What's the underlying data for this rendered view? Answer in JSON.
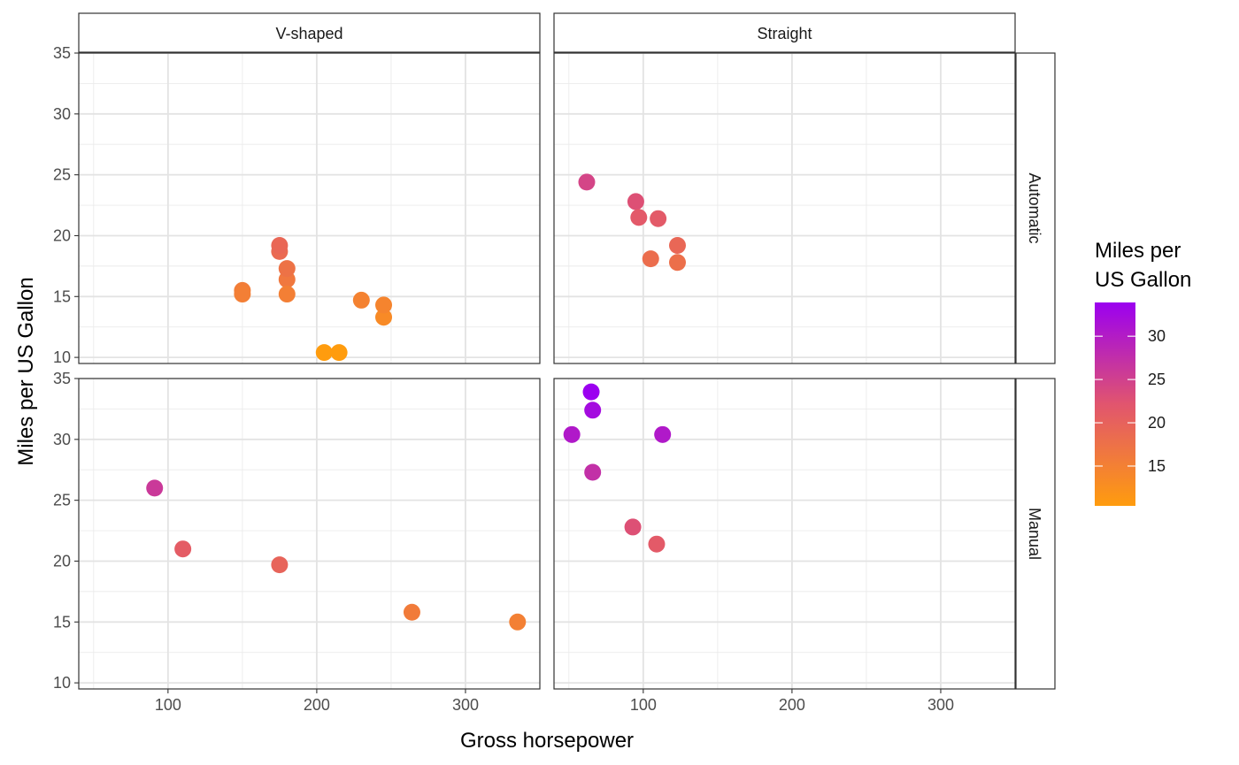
{
  "chart_data": {
    "type": "scatter",
    "facet_cols": [
      "V-shaped",
      "Straight"
    ],
    "facet_rows": [
      "Automatic",
      "Manual"
    ],
    "xlabel": "Gross horsepower",
    "ylabel": "Miles per US Gallon",
    "xlim": [
      40,
      350
    ],
    "ylim": [
      9.5,
      35.0
    ],
    "x_ticks": [
      100,
      200,
      300
    ],
    "y_ticks": [
      10,
      15,
      20,
      25,
      30,
      35
    ],
    "grid": true,
    "legend": {
      "title_lines": [
        "Miles per",
        "US Gallon"
      ],
      "ticks": [
        15,
        20,
        25,
        30
      ],
      "range": [
        10.4,
        33.9
      ],
      "color_low": "#FF9C0E",
      "color_high": "#9B00F0",
      "position": "right"
    },
    "panels": [
      {
        "col": "V-shaped",
        "row": "Automatic",
        "points": [
          {
            "x": 175,
            "y": 18.7
          },
          {
            "x": 180,
            "y": 16.4
          },
          {
            "x": 180,
            "y": 17.3
          },
          {
            "x": 180,
            "y": 15.2
          },
          {
            "x": 205,
            "y": 10.4
          },
          {
            "x": 215,
            "y": 10.4
          },
          {
            "x": 230,
            "y": 14.7
          },
          {
            "x": 150,
            "y": 15.5
          },
          {
            "x": 150,
            "y": 15.2
          },
          {
            "x": 245,
            "y": 13.3
          },
          {
            "x": 245,
            "y": 14.3
          },
          {
            "x": 175,
            "y": 19.2
          }
        ]
      },
      {
        "col": "Straight",
        "row": "Automatic",
        "points": [
          {
            "x": 110,
            "y": 21.4
          },
          {
            "x": 105,
            "y": 18.1
          },
          {
            "x": 62,
            "y": 24.4
          },
          {
            "x": 95,
            "y": 22.8
          },
          {
            "x": 123,
            "y": 19.2
          },
          {
            "x": 123,
            "y": 17.8
          },
          {
            "x": 97,
            "y": 21.5
          }
        ]
      },
      {
        "col": "V-shaped",
        "row": "Manual",
        "points": [
          {
            "x": 110,
            "y": 21.0
          },
          {
            "x": 91,
            "y": 26.0
          },
          {
            "x": 264,
            "y": 15.8
          },
          {
            "x": 175,
            "y": 19.7
          },
          {
            "x": 335,
            "y": 15.0
          }
        ]
      },
      {
        "col": "Straight",
        "row": "Manual",
        "points": [
          {
            "x": 93,
            "y": 22.8
          },
          {
            "x": 66,
            "y": 32.4
          },
          {
            "x": 52,
            "y": 30.4
          },
          {
            "x": 65,
            "y": 33.9
          },
          {
            "x": 66,
            "y": 27.3
          },
          {
            "x": 113,
            "y": 30.4
          },
          {
            "x": 109,
            "y": 21.4
          }
        ]
      }
    ]
  }
}
